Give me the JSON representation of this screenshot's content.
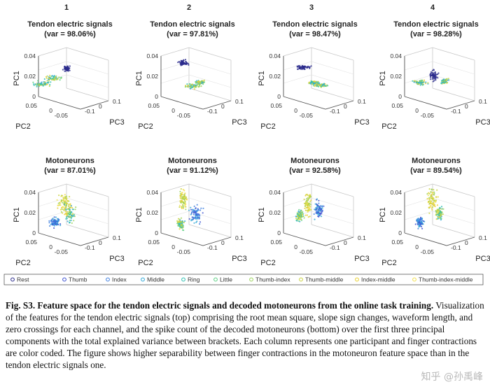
{
  "figure": {
    "column_numbers": [
      "1",
      "2",
      "3",
      "4"
    ],
    "axis_labels": {
      "pc1": "PC1",
      "pc2": "PC2",
      "pc3": "PC3"
    },
    "ticks": {
      "pc1": [
        "0.04",
        "0.02",
        "0"
      ],
      "pc2": [
        "0.05",
        "0",
        "-0.05"
      ],
      "pc3": [
        "0.1",
        "0",
        "-0.1"
      ]
    },
    "rows": [
      {
        "title": "Tendon electric signals",
        "panels": [
          {
            "var_label": "(var = 98.06%)"
          },
          {
            "var_label": "(var = 97.81%)"
          },
          {
            "var_label": "(var = 98.47%)"
          },
          {
            "var_label": "(var = 98.28%)"
          }
        ]
      },
      {
        "title": "Motoneurons",
        "panels": [
          {
            "var_label": "(var = 87.01%)"
          },
          {
            "var_label": "(var = 91.12%)"
          },
          {
            "var_label": "(var = 92.58%)"
          },
          {
            "var_label": "(var = 89.54%)"
          }
        ]
      }
    ],
    "legend": [
      {
        "label": "Rest",
        "color": "#2a2a8c"
      },
      {
        "label": "Thumb",
        "color": "#3b4fd0"
      },
      {
        "label": "Index",
        "color": "#3f7fe0"
      },
      {
        "label": "Middle",
        "color": "#2fa7d6"
      },
      {
        "label": "Ring",
        "color": "#2cc0b0"
      },
      {
        "label": "Little",
        "color": "#5ccf82"
      },
      {
        "label": "Thumb-index",
        "color": "#9bd35a"
      },
      {
        "label": "Thumb-middle",
        "color": "#c9d23c"
      },
      {
        "label": "Index-middle",
        "color": "#e8cf2e"
      },
      {
        "label": "Thumb-index-middle",
        "color": "#f2e04b"
      }
    ]
  },
  "caption": {
    "bold": "Fig. S3. Feature space for the tendon electric signals and decoded motoneurons from the online task training.",
    "text": " Visualization of the features for the tendon electric signals (top) comprising the root mean square, slope sign changes, waveform length, and zero crossings for each channel, and the spike count of the decoded motoneurons (bottom) over the first three principal components with the total explained variance between brackets. Each column represents one participant and finger contractions are color coded. The figure shows higher separability between finger contractions in the motoneuron feature space than in the tendon electric signals one."
  },
  "watermark": "知乎 @孙禹峰"
}
